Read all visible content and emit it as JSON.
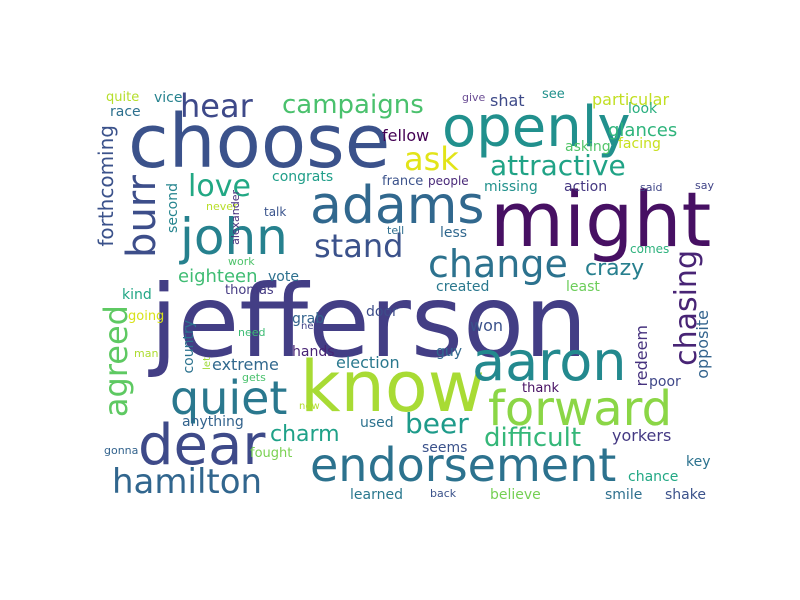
{
  "words": [
    {
      "text": "jefferson",
      "color": "#433e85"
    },
    {
      "text": "choose",
      "color": "#3b528b"
    },
    {
      "text": "might",
      "color": "#471063"
    },
    {
      "text": "know",
      "color": "#a8db34"
    },
    {
      "text": "openly",
      "color": "#21908d"
    },
    {
      "text": "adams",
      "color": "#31688e"
    },
    {
      "text": "john",
      "color": "#26818e"
    },
    {
      "text": "aaron",
      "color": "#23898e"
    },
    {
      "text": "endorsement",
      "color": "#2c728e"
    },
    {
      "text": "dear",
      "color": "#3e4a89"
    },
    {
      "text": "forward",
      "color": "#8bd646"
    },
    {
      "text": "quiet",
      "color": "#2a788e"
    },
    {
      "text": "change",
      "color": "#2c728e"
    },
    {
      "text": "hamilton",
      "color": "#31668e"
    },
    {
      "text": "stand",
      "color": "#3b528b"
    },
    {
      "text": "hear",
      "color": "#3e4989"
    },
    {
      "text": "campaigns",
      "color": "#4ac16d"
    },
    {
      "text": "attractive",
      "color": "#20a386"
    },
    {
      "text": "love",
      "color": "#22a884"
    },
    {
      "text": "ask",
      "color": "#e2e418"
    },
    {
      "text": "burr",
      "color": "#3d4e8a"
    },
    {
      "text": "beer",
      "color": "#1e9b8a"
    },
    {
      "text": "difficult",
      "color": "#35b779"
    },
    {
      "text": "chasing",
      "color": "#482475"
    },
    {
      "text": "crazy",
      "color": "#277f8e"
    },
    {
      "text": "charm",
      "color": "#1fa188"
    },
    {
      "text": "agreed",
      "color": "#5ec962"
    },
    {
      "text": "eighteen",
      "color": "#3fbc73"
    },
    {
      "text": "forthcoming",
      "color": "#3b528b"
    },
    {
      "text": "election",
      "color": "#2a788e"
    },
    {
      "text": "extreme",
      "color": "#31688e"
    },
    {
      "text": "yorkers",
      "color": "#443983"
    },
    {
      "text": "glances",
      "color": "#2fb47c"
    },
    {
      "text": "particular",
      "color": "#c2df23"
    },
    {
      "text": "fellow",
      "color": "#440154"
    },
    {
      "text": "redeem",
      "color": "#46327e"
    },
    {
      "text": "opposite",
      "color": "#33638d"
    },
    {
      "text": "won",
      "color": "#3b528b"
    },
    {
      "text": "shat",
      "color": "#3e4a89"
    },
    {
      "text": "race",
      "color": "#2d708e"
    },
    {
      "text": "vice",
      "color": "#26828e"
    },
    {
      "text": "quite",
      "color": "#b5de2b"
    },
    {
      "text": "give",
      "color": "#6a4c93"
    },
    {
      "text": "see",
      "color": "#21918c"
    },
    {
      "text": "look",
      "color": "#29af7f"
    },
    {
      "text": "facing",
      "color": "#c8e020"
    },
    {
      "text": "asking",
      "color": "#52c569"
    },
    {
      "text": "congrats",
      "color": "#1f9e89"
    },
    {
      "text": "france",
      "color": "#3b528b"
    },
    {
      "text": "people",
      "color": "#482878"
    },
    {
      "text": "missing",
      "color": "#21918c"
    },
    {
      "text": "action",
      "color": "#453781"
    },
    {
      "text": "said",
      "color": "#404688"
    },
    {
      "text": "say",
      "color": "#414487"
    },
    {
      "text": "second",
      "color": "#25848e"
    },
    {
      "text": "never",
      "color": "#b8de29"
    },
    {
      "text": "alexander",
      "color": "#472f7d"
    },
    {
      "text": "talk",
      "color": "#3a548c"
    },
    {
      "text": "tell",
      "color": "#2e6e8e"
    },
    {
      "text": "less",
      "color": "#31688e"
    },
    {
      "text": "comes",
      "color": "#2db27d"
    },
    {
      "text": "work",
      "color": "#4ec36b"
    },
    {
      "text": "vote",
      "color": "#2d708e"
    },
    {
      "text": "kind",
      "color": "#21a685"
    },
    {
      "text": "thomas",
      "color": "#443a83"
    },
    {
      "text": "door",
      "color": "#3d4d8a"
    },
    {
      "text": "created",
      "color": "#2a788e"
    },
    {
      "text": "least",
      "color": "#6ccd5a"
    },
    {
      "text": "going",
      "color": "#d8e219"
    },
    {
      "text": "country",
      "color": "#2c728e"
    },
    {
      "text": "grab",
      "color": "#33638d"
    },
    {
      "text": "new",
      "color": "#404387"
    },
    {
      "text": "need",
      "color": "#3dbc74"
    },
    {
      "text": "hands",
      "color": "#482475"
    },
    {
      "text": "guy",
      "color": "#31688e"
    },
    {
      "text": "man",
      "color": "#addc30"
    },
    {
      "text": "let",
      "color": "#a0da39"
    },
    {
      "text": "gets",
      "color": "#4ac16d"
    },
    {
      "text": "thank",
      "color": "#471063"
    },
    {
      "text": "poor",
      "color": "#3f4788"
    },
    {
      "text": "anything",
      "color": "#33638d"
    },
    {
      "text": "now",
      "color": "#b2dd2d"
    },
    {
      "text": "used",
      "color": "#2c728e"
    },
    {
      "text": "seems",
      "color": "#3b528b"
    },
    {
      "text": "key",
      "color": "#2c728e"
    },
    {
      "text": "chance",
      "color": "#22a884"
    },
    {
      "text": "gonna",
      "color": "#33638d"
    },
    {
      "text": "fought",
      "color": "#7ad151"
    },
    {
      "text": "learned",
      "color": "#2a788e"
    },
    {
      "text": "back",
      "color": "#3b528b"
    },
    {
      "text": "believe",
      "color": "#75d054"
    },
    {
      "text": "smile",
      "color": "#2e6f8e"
    },
    {
      "text": "shake",
      "color": "#3b528b"
    }
  ]
}
